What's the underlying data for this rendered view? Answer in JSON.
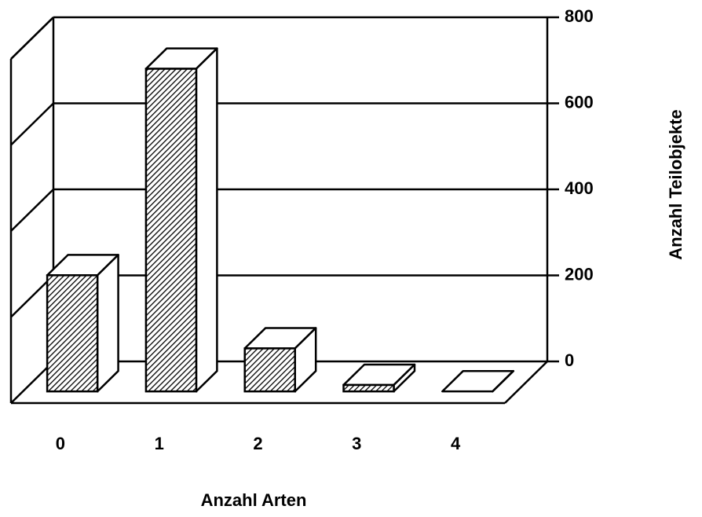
{
  "chart_data": {
    "type": "bar3d",
    "categories": [
      "0",
      "1",
      "2",
      "3",
      "4"
    ],
    "values": [
      270,
      750,
      100,
      15,
      0
    ],
    "xlabel": "Anzahl Arten",
    "ylabel": "Anzahl Teilobjekte",
    "ylim": [
      0,
      800
    ],
    "yticks": [
      0,
      200,
      400,
      600,
      800
    ],
    "grid": true,
    "color": "#000000"
  }
}
